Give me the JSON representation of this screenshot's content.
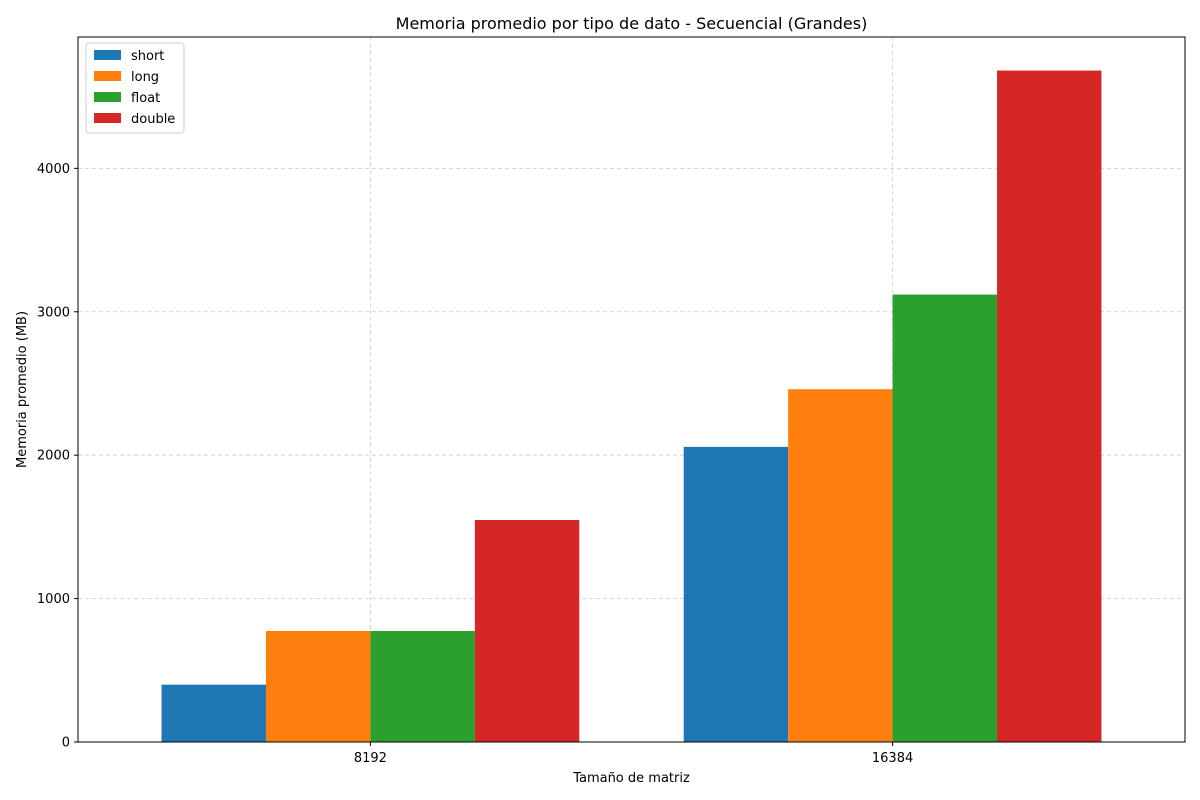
{
  "chart_data": {
    "type": "bar",
    "title": "Memoria promedio por tipo de dato - Secuencial (Grandes)",
    "xlabel": "Tamaño de matriz",
    "ylabel": "Memoria promedio (MB)",
    "categories": [
      "8192",
      "16384"
    ],
    "series": [
      {
        "name": "short",
        "color": "#1f77b4",
        "values": [
          400,
          2058
        ]
      },
      {
        "name": "long",
        "color": "#ff7f0e",
        "values": [
          774,
          2460
        ]
      },
      {
        "name": "float",
        "color": "#2ca02c",
        "values": [
          774,
          3120
        ]
      },
      {
        "name": "double",
        "color": "#d62728",
        "values": [
          1548,
          4682
        ]
      }
    ],
    "ylim": [
      0,
      4916
    ],
    "yticks": [
      0,
      1000,
      2000,
      3000,
      4000
    ],
    "grid": true,
    "legend_position": "top-left"
  }
}
